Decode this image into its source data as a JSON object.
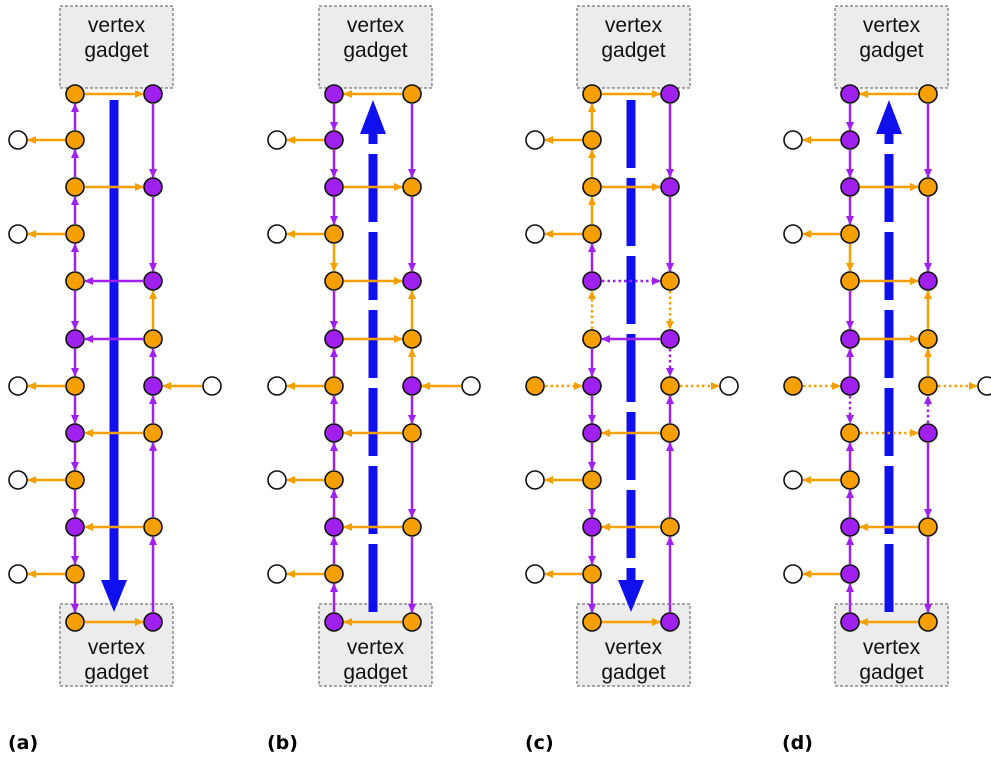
{
  "gadget_label_line1": "vertex",
  "gadget_label_line2": "gadget",
  "colors": {
    "orange": "#f5a000",
    "purple": "#a020f0",
    "blue": "#1010ee",
    "gadget_fill": "#ececec",
    "node_empty": "#ffffff"
  },
  "panels": [
    {
      "caption": "(a)",
      "direction": "down",
      "arrow_dashed": false,
      "dotted_section": false
    },
    {
      "caption": "(b)",
      "direction": "up",
      "arrow_dashed": true,
      "dotted_section": false
    },
    {
      "caption": "(c)",
      "direction": "down",
      "arrow_dashed": true,
      "dotted_section": true
    },
    {
      "caption": "(d)",
      "direction": "up",
      "arrow_dashed": true,
      "dotted_section": true
    }
  ]
}
